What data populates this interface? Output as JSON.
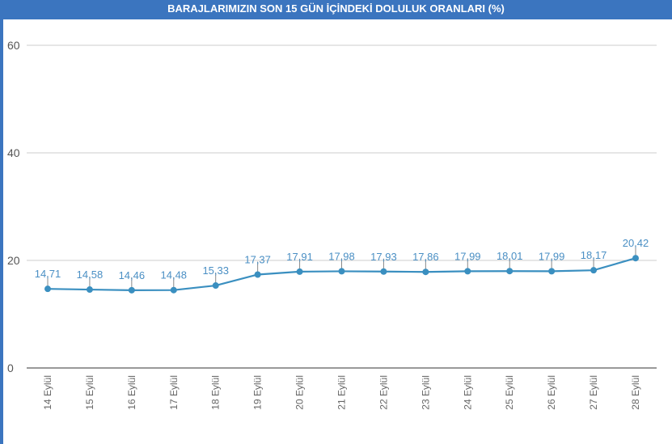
{
  "title": "BARAJLARIMIZIN SON 15 GÜN İÇİNDEKİ DOLULUK ORANLARI (%)",
  "colors": {
    "header": "#3b75bf",
    "series": "#3a8fc0",
    "label": "#4a8fc4",
    "grid": "#cccccc",
    "axis": "#333333"
  },
  "chart_data": {
    "type": "line",
    "title": "BARAJLARIMIZIN SON 15 GÜN İÇİNDEKİ DOLULUK ORANLARI (%)",
    "xlabel": "",
    "ylabel": "",
    "ylim": [
      0,
      60
    ],
    "yticks": [
      0,
      20,
      40,
      60
    ],
    "grid": true,
    "legend": null,
    "categories": [
      "14 Eylül",
      "15 Eylül",
      "16 Eylül",
      "17 Eylül",
      "18 Eylül",
      "19 Eylül",
      "20 Eylül",
      "21 Eylül",
      "22 Eylül",
      "23 Eylül",
      "24 Eylül",
      "25 Eylül",
      "26 Eylül",
      "27 Eylül",
      "28 Eylül"
    ],
    "values": [
      14.71,
      14.58,
      14.46,
      14.48,
      15.33,
      17.37,
      17.91,
      17.98,
      17.93,
      17.86,
      17.99,
      18.01,
      17.99,
      18.17,
      20.42
    ],
    "value_labels": [
      "14,71",
      "14,58",
      "14,46",
      "14,48",
      "15,33",
      "17,37",
      "17,91",
      "17,98",
      "17,93",
      "17,86",
      "17,99",
      "18,01",
      "17,99",
      "18,17",
      "20,42"
    ]
  }
}
